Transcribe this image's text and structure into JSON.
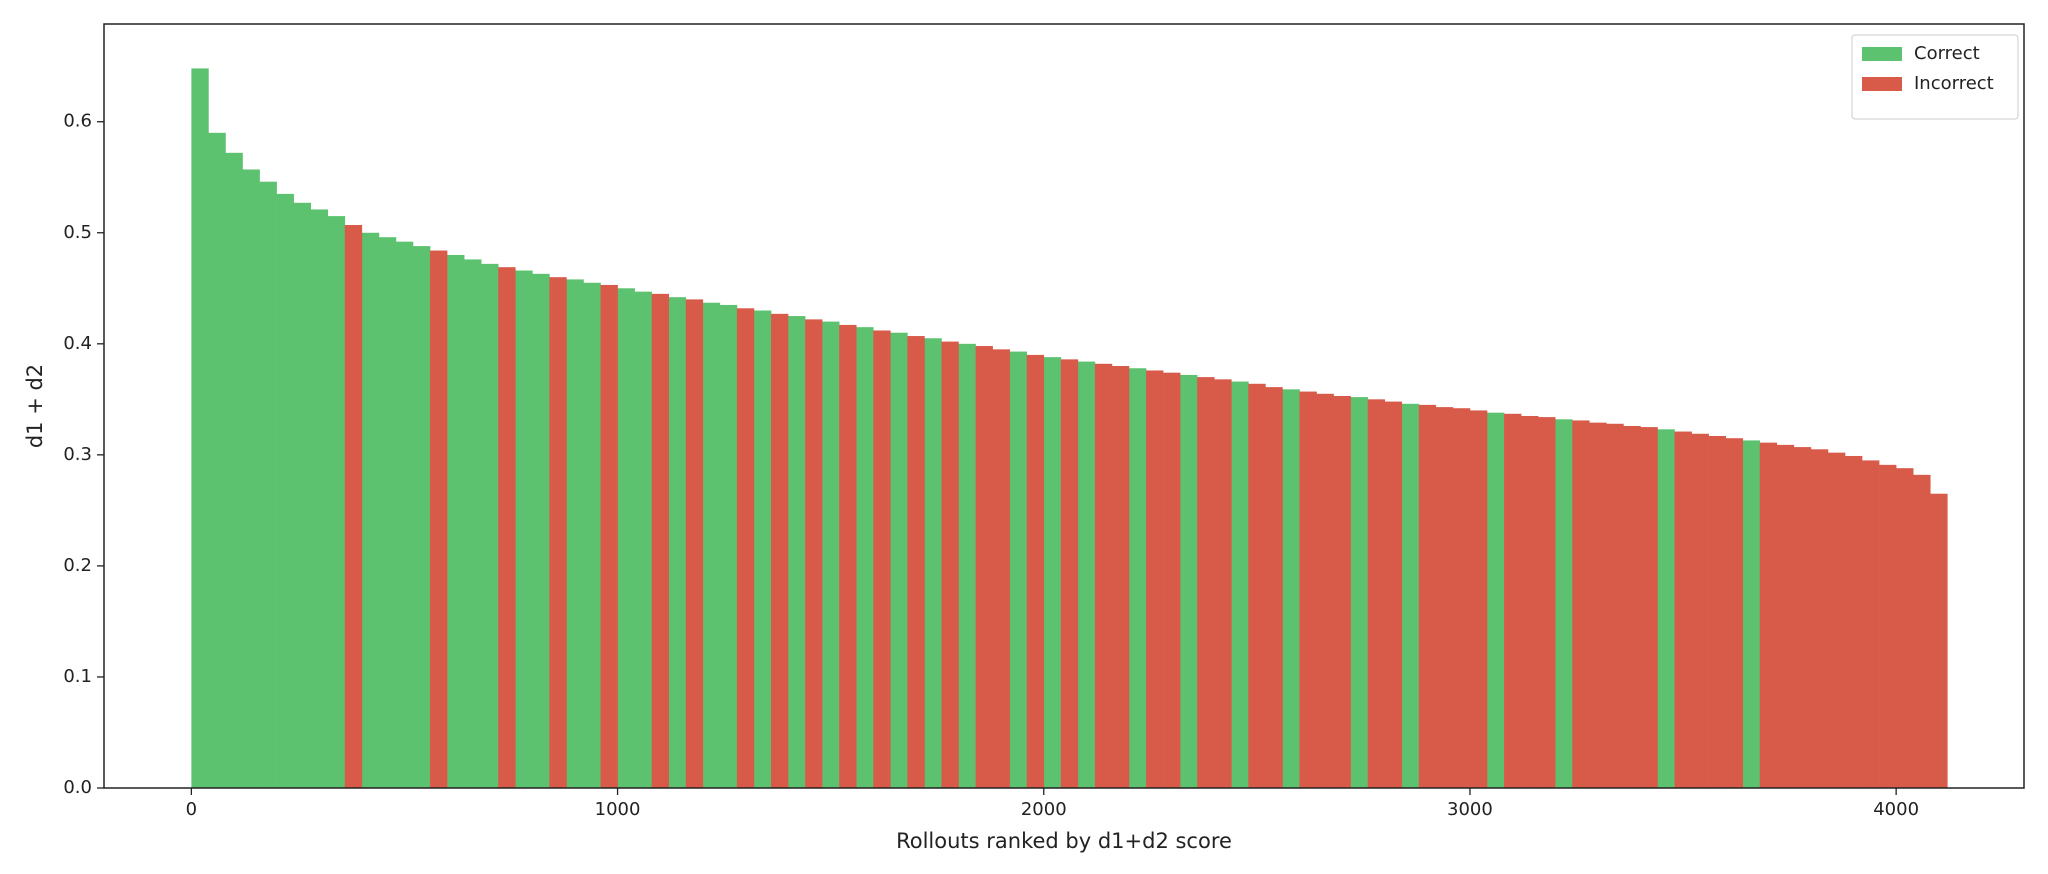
{
  "chart_data": {
    "type": "bar",
    "xlabel": "Rollouts ranked by d1+d2 score",
    "ylabel": "d1 + d2",
    "xlim": [
      -205,
      4300
    ],
    "ylim": [
      0,
      0.688
    ],
    "xticks": [
      0,
      1000,
      2000,
      3000,
      4000
    ],
    "yticks": [
      {
        "value": 0,
        "label": "0.0"
      },
      0.1,
      0.2,
      0.3,
      0.4,
      0.5,
      0.6
    ],
    "grid": false,
    "legend": "upper right",
    "series": [
      {
        "name": "Correct",
        "color": "#5cc26f",
        "x": [
          0,
          40,
          80,
          120,
          160,
          200,
          240,
          280,
          320,
          400,
          440,
          480,
          520,
          600,
          640,
          680,
          760,
          800,
          880,
          920,
          1000,
          1040,
          1120,
          1200,
          1240,
          1320,
          1400,
          1480,
          1560,
          1640,
          1720,
          1800,
          1920,
          2000,
          2080,
          2200,
          2320,
          2440,
          2560,
          2720,
          2840,
          3040,
          3200,
          3440,
          3640
        ],
        "values": [
          0.648,
          0.59,
          0.572,
          0.557,
          0.546,
          0.535,
          0.527,
          0.521,
          0.515,
          0.5,
          0.496,
          0.492,
          0.488,
          0.48,
          0.476,
          0.472,
          0.466,
          0.463,
          0.458,
          0.455,
          0.45,
          0.447,
          0.442,
          0.437,
          0.435,
          0.43,
          0.425,
          0.42,
          0.415,
          0.41,
          0.405,
          0.4,
          0.393,
          0.388,
          0.384,
          0.378,
          0.372,
          0.366,
          0.359,
          0.352,
          0.346,
          0.338,
          0.332,
          0.323,
          0.313
        ]
      },
      {
        "name": "Incorrect",
        "color": "#d85a48",
        "x": [
          360,
          560,
          720,
          840,
          960,
          1080,
          1160,
          1280,
          1360,
          1440,
          1520,
          1600,
          1680,
          1760,
          1840,
          1880,
          1960,
          2040,
          2120,
          2160,
          2240,
          2280,
          2360,
          2400,
          2480,
          2520,
          2600,
          2640,
          2680,
          2760,
          2800,
          2880,
          2920,
          2960,
          3000,
          3080,
          3120,
          3160,
          3240,
          3280,
          3320,
          3360,
          3400,
          3480,
          3520,
          3560,
          3600,
          3680,
          3720,
          3760,
          3800,
          3840,
          3880,
          3920,
          3960,
          4000,
          4040,
          4080
        ],
        "values": [
          0.507,
          0.484,
          0.469,
          0.46,
          0.453,
          0.445,
          0.44,
          0.432,
          0.427,
          0.422,
          0.417,
          0.412,
          0.407,
          0.402,
          0.398,
          0.395,
          0.39,
          0.386,
          0.382,
          0.38,
          0.376,
          0.374,
          0.37,
          0.368,
          0.364,
          0.361,
          0.357,
          0.355,
          0.353,
          0.35,
          0.348,
          0.345,
          0.343,
          0.342,
          0.34,
          0.337,
          0.335,
          0.334,
          0.331,
          0.329,
          0.328,
          0.326,
          0.325,
          0.321,
          0.319,
          0.317,
          0.315,
          0.311,
          0.309,
          0.307,
          0.305,
          0.302,
          0.299,
          0.295,
          0.291,
          0.288,
          0.282,
          0.265
        ]
      }
    ]
  }
}
